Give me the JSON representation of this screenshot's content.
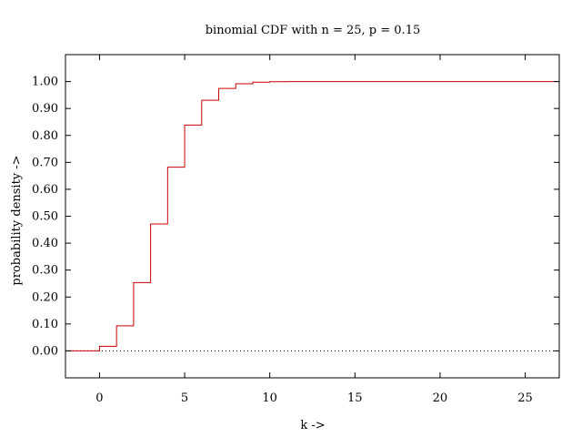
{
  "chart_data": {
    "type": "line",
    "title": "binomial CDF with n = 25, p = 0.15",
    "xlabel": "k ->",
    "ylabel": "probability density ->",
    "xlim": [
      -2,
      27
    ],
    "ylim": [
      -0.1,
      1.1
    ],
    "x_ticks": [
      0,
      5,
      10,
      15,
      20,
      25
    ],
    "y_ticks": [
      0.0,
      0.1,
      0.2,
      0.3,
      0.4,
      0.5,
      0.6,
      0.7,
      0.8,
      0.9,
      1.0
    ],
    "x_tick_labels": [
      "0",
      "5",
      "10",
      "15",
      "20",
      "25"
    ],
    "y_tick_labels": [
      "0.00",
      "0.10",
      "0.20",
      "0.30",
      "0.40",
      "0.50",
      "0.60",
      "0.70",
      "0.80",
      "0.90",
      "1.00"
    ],
    "grid": false,
    "series": [
      {
        "style": "steps",
        "color": "#cc0000",
        "points": [
          [
            -2,
            0.0
          ],
          [
            0,
            0.0172
          ],
          [
            1,
            0.0931
          ],
          [
            2,
            0.2537
          ],
          [
            3,
            0.4711
          ],
          [
            4,
            0.6821
          ],
          [
            5,
            0.8385
          ],
          [
            6,
            0.9305
          ],
          [
            7,
            0.9745
          ],
          [
            8,
            0.992
          ],
          [
            9,
            0.9979
          ],
          [
            10,
            0.9995
          ],
          [
            11,
            0.9999
          ],
          [
            12,
            1.0
          ],
          [
            27,
            1.0
          ]
        ]
      }
    ],
    "reference_lines": [
      {
        "y": 0.0,
        "style": "dotted",
        "color": "#000000"
      }
    ]
  }
}
